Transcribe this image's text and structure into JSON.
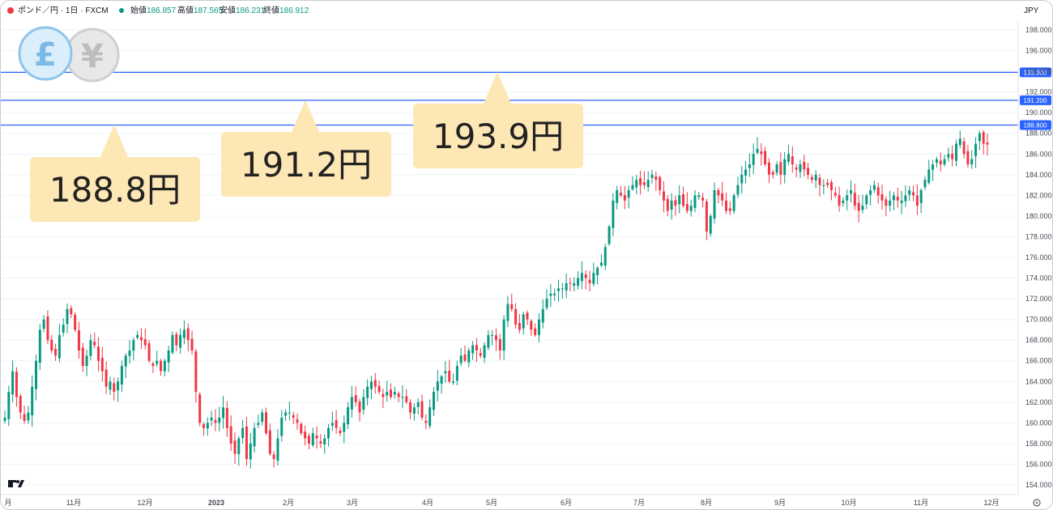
{
  "header": {
    "symbol": "ポンド／円 · 1日 · FXCM",
    "open_label": "始値",
    "open_value": "186.857",
    "high_label": "高値",
    "high_value": "187.565",
    "low_label": "安値",
    "low_value": "186.231",
    "close_label": "終値",
    "close_value": "186.912",
    "currency": "JPY"
  },
  "logo_pound": "£",
  "logo_yen": "¥",
  "tv_logo": "TV",
  "colors": {
    "up": "#089981",
    "down": "#f23645",
    "level_line": "#2962ff",
    "callout_bg": "#fde7b4",
    "grid": "#f0f3fa"
  },
  "callouts": [
    {
      "text": "188.8円",
      "price": 188.8
    },
    {
      "text": "191.2円",
      "price": 191.2
    },
    {
      "text": "193.9円",
      "price": 193.9
    }
  ],
  "chart_data": {
    "type": "candlestick",
    "title": "",
    "xlabel": "",
    "ylabel": "",
    "ylim": [
      153.0,
      200.5
    ],
    "y_ticks": [
      "154.000",
      "156.000",
      "158.000",
      "160.000",
      "162.000",
      "164.000",
      "166.000",
      "168.000",
      "170.000",
      "172.000",
      "174.000",
      "176.000",
      "178.000",
      "180.000",
      "182.000",
      "184.000",
      "186.000",
      "188.000",
      "190.000",
      "192.000",
      "194.000",
      "196.000",
      "198.000"
    ],
    "x_labels": [
      "月",
      "11月",
      "12月",
      "2023",
      "2月",
      "3月",
      "4月",
      "5月",
      "6月",
      "7月",
      "8月",
      "9月",
      "10月",
      "11月",
      "12月"
    ],
    "horizontal_levels": [
      {
        "label": "188.800",
        "value": 188.8
      },
      {
        "label": "191.200",
        "value": 191.2
      },
      {
        "label": "193.900",
        "value": 193.9
      }
    ],
    "closes": [
      160.5,
      163.0,
      165.0,
      162.5,
      161.0,
      160.2,
      161.0,
      163.5,
      166.0,
      169.0,
      170.0,
      168.0,
      167.0,
      166.5,
      168.5,
      169.5,
      171.0,
      170.5,
      169.0,
      167.0,
      165.5,
      166.5,
      168.0,
      167.5,
      166.0,
      165.0,
      163.5,
      164.0,
      163.0,
      164.0,
      165.5,
      166.5,
      167.0,
      168.0,
      168.5,
      168.0,
      167.5,
      166.0,
      165.5,
      166.0,
      165.0,
      166.0,
      167.0,
      168.5,
      167.5,
      168.5,
      169.0,
      168.0,
      167.0,
      163.0,
      160.0,
      159.5,
      160.0,
      160.5,
      160.0,
      160.5,
      161.5,
      159.5,
      158.0,
      157.0,
      158.5,
      159.5,
      156.5,
      158.0,
      159.5,
      160.0,
      161.0,
      159.0,
      157.0,
      156.5,
      158.5,
      160.5,
      161.0,
      161.0,
      160.5,
      160.0,
      159.0,
      158.5,
      158.0,
      159.0,
      158.5,
      158.0,
      158.5,
      159.5,
      160.0,
      159.5,
      159.0,
      160.0,
      161.5,
      162.5,
      162.0,
      161.0,
      162.5,
      163.5,
      164.0,
      163.5,
      163.0,
      162.5,
      163.0,
      162.5,
      163.0,
      162.5,
      162.5,
      162.0,
      161.0,
      161.5,
      162.0,
      160.5,
      160.0,
      161.5,
      163.0,
      164.0,
      164.5,
      165.0,
      164.0,
      164.0,
      165.5,
      166.5,
      166.0,
      167.0,
      167.5,
      167.0,
      166.5,
      167.5,
      168.5,
      168.5,
      168.0,
      167.0,
      170.0,
      171.5,
      171.0,
      169.5,
      169.0,
      170.5,
      170.0,
      169.0,
      168.5,
      170.0,
      171.0,
      172.0,
      172.5,
      172.5,
      173.0,
      173.0,
      173.5,
      173.5,
      173.5,
      174.0,
      174.5,
      174.0,
      173.5,
      174.5,
      175.0,
      175.5,
      177.0,
      179.0,
      181.5,
      182.5,
      182.0,
      181.5,
      182.5,
      183.0,
      183.5,
      183.0,
      183.0,
      183.5,
      184.0,
      183.5,
      182.5,
      181.5,
      180.5,
      181.5,
      181.0,
      182.0,
      181.0,
      180.5,
      181.0,
      182.0,
      182.0,
      181.5,
      178.5,
      180.0,
      182.5,
      182.0,
      181.5,
      180.5,
      180.5,
      182.0,
      183.0,
      184.0,
      184.5,
      185.0,
      186.0,
      186.5,
      186.0,
      185.0,
      184.0,
      184.0,
      185.0,
      184.0,
      185.5,
      186.0,
      185.0,
      184.5,
      185.0,
      184.5,
      184.0,
      183.5,
      184.0,
      183.0,
      183.0,
      183.0,
      182.5,
      182.0,
      181.0,
      181.5,
      182.0,
      182.5,
      181.0,
      180.5,
      181.0,
      182.0,
      182.5,
      183.0,
      182.0,
      181.5,
      181.0,
      181.5,
      182.0,
      181.5,
      181.5,
      182.0,
      182.5,
      182.0,
      181.0,
      182.5,
      183.5,
      184.5,
      185.0,
      185.5,
      185.0,
      185.5,
      186.0,
      185.5,
      187.0,
      187.5,
      186.0,
      185.0,
      185.5,
      187.0,
      188.0,
      187.0,
      186.912
    ]
  }
}
